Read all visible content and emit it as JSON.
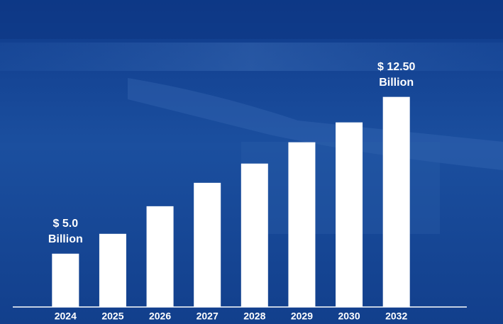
{
  "chart_data": {
    "type": "bar",
    "categories": [
      "2024",
      "2025",
      "2026",
      "2027",
      "2028",
      "2029",
      "2030",
      "2032"
    ],
    "values": [
      5.0,
      5.95,
      7.27,
      8.39,
      9.31,
      10.33,
      11.28,
      12.5
    ],
    "value_labels": [
      [
        "$ 5.0",
        "Billion"
      ],
      null,
      null,
      null,
      null,
      null,
      null,
      [
        "$ 12.50",
        "Billion"
      ]
    ],
    "color": "#ffffff",
    "ylim": [
      2.45,
      15.1
    ]
  }
}
